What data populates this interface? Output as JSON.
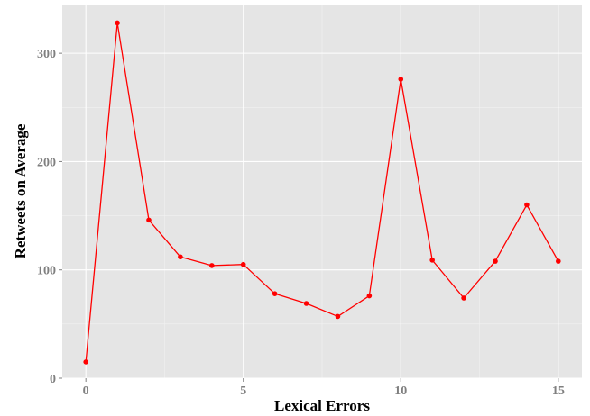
{
  "chart_data": {
    "type": "line",
    "title": "",
    "xlabel": "Lexical Errors",
    "ylabel": "Retweets on Average",
    "x": [
      0,
      1,
      2,
      3,
      4,
      5,
      6,
      7,
      8,
      9,
      10,
      11,
      12,
      13,
      14,
      15
    ],
    "series": [
      {
        "name": "",
        "values": [
          15,
          328,
          146,
          112,
          104,
          105,
          78,
          69,
          57,
          76,
          276,
          109,
          74,
          108,
          160,
          108
        ]
      }
    ],
    "xlim": [
      -0.75,
      15.75
    ],
    "ylim": [
      0,
      345
    ],
    "xticks": [
      "0",
      "5",
      "10",
      "15"
    ],
    "yticks": [
      "0",
      "100",
      "200",
      "300"
    ],
    "grid": true,
    "legend": "none"
  },
  "colors": {
    "panel_background": "#e5e5e5",
    "grid_major": "#ffffff",
    "grid_minor": "#f2f2f2",
    "line": "#ff0000",
    "tick_text": "#7f7f7f",
    "axis_title_text": "#000000"
  }
}
